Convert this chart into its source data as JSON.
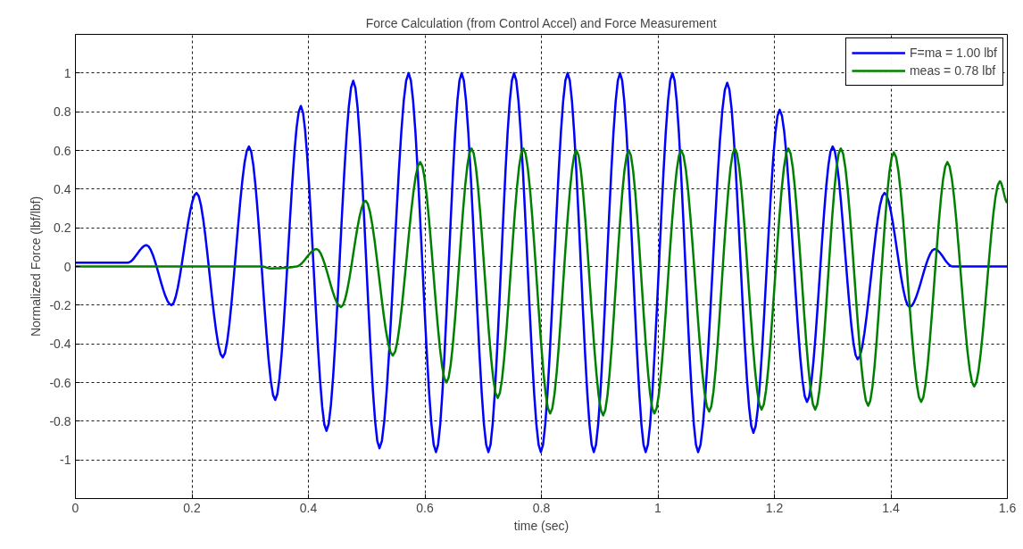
{
  "chart_data": {
    "type": "line",
    "title": "Force Calculation (from Control Accel) and Force Measurement",
    "xlabel": "time (sec)",
    "ylabel": "Normalized Force (lbf/lbf)",
    "xlim": [
      0,
      1.6
    ],
    "ylim": [
      -1.2,
      1.2
    ],
    "xticks": [
      0,
      0.2,
      0.4,
      0.6,
      0.8,
      1,
      1.2,
      1.4,
      1.6
    ],
    "yticks": [
      -1,
      -0.8,
      -0.6,
      -0.4,
      -0.2,
      0,
      0.2,
      0.4,
      0.6,
      0.8,
      1
    ],
    "grid": true,
    "legend": "top right",
    "series": [
      {
        "name": "F=ma = 1.00 lbf",
        "color": "#0000ff",
        "x": [
          0,
          0.09,
          0.122,
          0.165,
          0.208,
          0.253,
          0.298,
          0.343,
          0.387,
          0.431,
          0.477,
          0.522,
          0.572,
          0.619,
          0.663,
          0.709,
          0.753,
          0.799,
          0.845,
          0.89,
          0.935,
          0.979,
          1.025,
          1.069,
          1.119,
          1.164,
          1.209,
          1.256,
          1.3,
          1.343,
          1.389,
          1.432,
          1.475,
          1.506,
          1.6
        ],
        "values": [
          0.02,
          0.02,
          0.11,
          -0.2,
          0.38,
          -0.47,
          0.62,
          -0.69,
          0.83,
          -0.85,
          0.96,
          -0.94,
          1.0,
          -0.96,
          1.0,
          -0.96,
          1.0,
          -0.96,
          1.0,
          -0.96,
          1.0,
          -0.96,
          1.0,
          -0.96,
          0.95,
          -0.86,
          0.81,
          -0.7,
          0.62,
          -0.48,
          0.38,
          -0.21,
          0.09,
          0.0,
          0.0
        ]
      },
      {
        "name": "meas = 0.78 lbf",
        "color": "#008000",
        "x": [
          0,
          0.32,
          0.335,
          0.38,
          0.414,
          0.456,
          0.498,
          0.545,
          0.592,
          0.637,
          0.68,
          0.725,
          0.769,
          0.815,
          0.86,
          0.906,
          0.95,
          0.994,
          1.04,
          1.088,
          1.132,
          1.178,
          1.224,
          1.27,
          1.314,
          1.361,
          1.405,
          1.452,
          1.497,
          1.543,
          1.587,
          1.6
        ],
        "values": [
          0,
          0,
          -0.01,
          0,
          0.09,
          -0.21,
          0.34,
          -0.46,
          0.54,
          -0.6,
          0.61,
          -0.68,
          0.61,
          -0.76,
          0.6,
          -0.77,
          0.6,
          -0.76,
          0.6,
          -0.75,
          0.61,
          -0.74,
          0.61,
          -0.74,
          0.61,
          -0.72,
          0.59,
          -0.7,
          0.54,
          -0.62,
          0.44,
          0.33
        ]
      }
    ]
  }
}
